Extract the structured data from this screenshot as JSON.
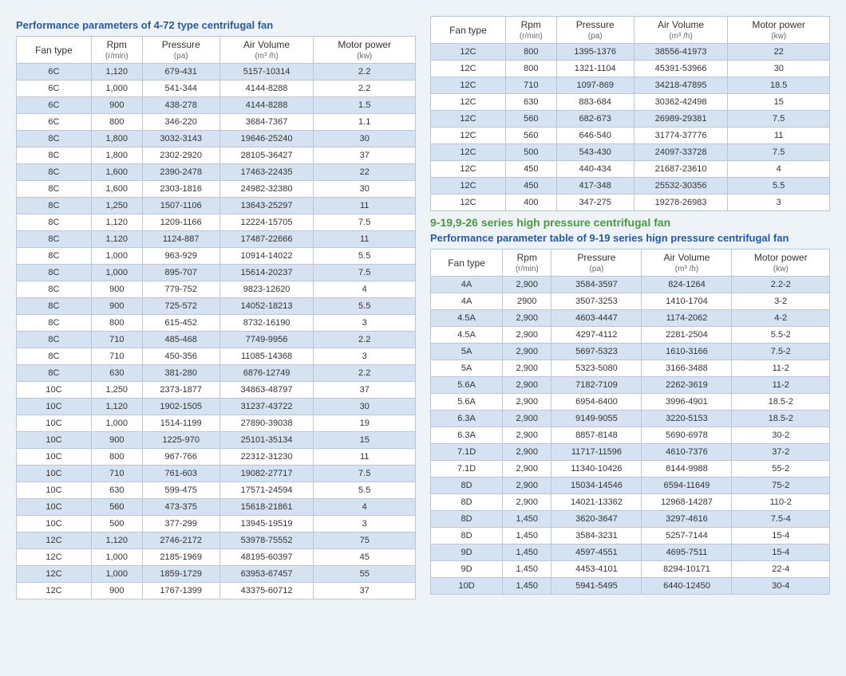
{
  "colors": {
    "title_blue": "#2659a6",
    "title_green": "#4a9a3f",
    "stripe": "#d4e2f1",
    "border": "#b8c6d6",
    "bg": "#eef3f8"
  },
  "headers": {
    "fan_type": "Fan type",
    "rpm": "Rpm",
    "rpm_unit": "(r/min)",
    "pressure": "Pressure",
    "pressure_unit": "(pa)",
    "air_volume": "Air Volume",
    "air_volume_unit": "(m³ /h)",
    "motor_power": "Motor power",
    "motor_power_unit": "(kw)"
  },
  "left": {
    "title": "Performance parameters of 4-72 type centrifugal fan",
    "rows": [
      [
        "6C",
        "1,120",
        "679-431",
        "5157-10314",
        "2.2"
      ],
      [
        "6C",
        "1,000",
        "541-344",
        "4144-8288",
        "2.2"
      ],
      [
        "6C",
        "900",
        "438-278",
        "4144-8288",
        "1.5"
      ],
      [
        "6C",
        "800",
        "346-220",
        "3684-7367",
        "1.1"
      ],
      [
        "8C",
        "1,800",
        "3032-3143",
        "19646-25240",
        "30"
      ],
      [
        "8C",
        "1,800",
        "2302-2920",
        "28105-36427",
        "37"
      ],
      [
        "8C",
        "1,600",
        "2390-2478",
        "17463-22435",
        "22"
      ],
      [
        "8C",
        "1,600",
        "2303-1816",
        "24982-32380",
        "30"
      ],
      [
        "8C",
        "1,250",
        "1507-1106",
        "13643-25297",
        "11"
      ],
      [
        "8C",
        "1,120",
        "1209-1166",
        "12224-15705",
        "7.5"
      ],
      [
        "8C",
        "1,120",
        "1124-887",
        "17487-22666",
        "11"
      ],
      [
        "8C",
        "1,000",
        "963-929",
        "10914-14022",
        "5.5"
      ],
      [
        "8C",
        "1,000",
        "895-707",
        "15614-20237",
        "7.5"
      ],
      [
        "8C",
        "900",
        "779-752",
        "9823-12620",
        "4"
      ],
      [
        "8C",
        "900",
        "725-572",
        "14052-18213",
        "5.5"
      ],
      [
        "8C",
        "800",
        "615-452",
        "8732-16190",
        "3"
      ],
      [
        "8C",
        "710",
        "485-468",
        "7749-9956",
        "2.2"
      ],
      [
        "8C",
        "710",
        "450-356",
        "11085-14368",
        "3"
      ],
      [
        "8C",
        "630",
        "381-280",
        "6876-12749",
        "2.2"
      ],
      [
        "10C",
        "1,250",
        "2373-1877",
        "34863-48797",
        "37"
      ],
      [
        "10C",
        "1,120",
        "1902-1505",
        "31237-43722",
        "30"
      ],
      [
        "10C",
        "1,000",
        "1514-1199",
        "27890-39038",
        "19"
      ],
      [
        "10C",
        "900",
        "1225-970",
        "25101-35134",
        "15"
      ],
      [
        "10C",
        "800",
        "967-766",
        "22312-31230",
        "11"
      ],
      [
        "10C",
        "710",
        "761-603",
        "19082-27717",
        "7.5"
      ],
      [
        "10C",
        "630",
        "599-475",
        "17571-24594",
        "5.5"
      ],
      [
        "10C",
        "560",
        "473-375",
        "15618-21861",
        "4"
      ],
      [
        "10C",
        "500",
        "377-299",
        "13945-19519",
        "3"
      ],
      [
        "12C",
        "1,120",
        "2746-2172",
        "53978-75552",
        "75"
      ],
      [
        "12C",
        "1,000",
        "2185-1969",
        "48195-60397",
        "45"
      ],
      [
        "12C",
        "1,000",
        "1859-1729",
        "63953-67457",
        "55"
      ],
      [
        "12C",
        "900",
        "1767-1399",
        "43375-60712",
        "37"
      ]
    ]
  },
  "right_top": {
    "rows": [
      [
        "12C",
        "800",
        "1395-1376",
        "38556-41973",
        "22"
      ],
      [
        "12C",
        "800",
        "1321-1104",
        "45391-53966",
        "30"
      ],
      [
        "12C",
        "710",
        "1097-869",
        "34218-47895",
        "18.5"
      ],
      [
        "12C",
        "630",
        "883-684",
        "30362-42498",
        "15"
      ],
      [
        "12C",
        "560",
        "682-673",
        "26989-29381",
        "7.5"
      ],
      [
        "12C",
        "560",
        "646-540",
        "31774-37776",
        "11"
      ],
      [
        "12C",
        "500",
        "543-430",
        "24097-33728",
        "7.5"
      ],
      [
        "12C",
        "450",
        "440-434",
        "21687-23610",
        "4"
      ],
      [
        "12C",
        "450",
        "417-348",
        "25532-30356",
        "5.5"
      ],
      [
        "12C",
        "400",
        "347-275",
        "19278-26983",
        "3"
      ]
    ]
  },
  "right_bottom": {
    "green_title": "9-19,9-26 series high pressure centrifugal fan",
    "title": "Performance parameter table of 9-19 series hign pressure centrifugal fan",
    "rows": [
      [
        "4A",
        "2,900",
        "3584-3597",
        "824-1264",
        "2.2-2"
      ],
      [
        "4A",
        "2900",
        "3507-3253",
        "1410-1704",
        "3-2"
      ],
      [
        "4.5A",
        "2,900",
        "4603-4447",
        "1174-2062",
        "4-2"
      ],
      [
        "4.5A",
        "2,900",
        "4297-4112",
        "2281-2504",
        "5.5-2"
      ],
      [
        "5A",
        "2,900",
        "5697-5323",
        "1610-3166",
        "7.5-2"
      ],
      [
        "5A",
        "2,900",
        "5323-5080",
        "3166-3488",
        "11-2"
      ],
      [
        "5.6A",
        "2,900",
        "7182-7109",
        "2262-3619",
        "11-2"
      ],
      [
        "5.6A",
        "2,900",
        "6954-6400",
        "3996-4901",
        "18.5-2"
      ],
      [
        "6.3A",
        "2,900",
        "9149-9055",
        "3220-5153",
        "18.5-2"
      ],
      [
        "6.3A",
        "2,900",
        "8857-8148",
        "5690-6978",
        "30-2"
      ],
      [
        "7.1D",
        "2,900",
        "11717-11596",
        "4610-7376",
        "37-2"
      ],
      [
        "7.1D",
        "2,900",
        "11340-10426",
        "8144-9988",
        "55-2"
      ],
      [
        "8D",
        "2,900",
        "15034-14546",
        "6594-11649",
        "75-2"
      ],
      [
        "8D",
        "2,900",
        "14021-13362",
        "12968-14287",
        "110-2"
      ],
      [
        "8D",
        "1,450",
        "3620-3647",
        "3297-4616",
        "7.5-4"
      ],
      [
        "8D",
        "1,450",
        "3584-3231",
        "5257-7144",
        "15-4"
      ],
      [
        "9D",
        "1,450",
        "4597-4551",
        "4695-7511",
        "15-4"
      ],
      [
        "9D",
        "1,450",
        "4453-4101",
        "8294-10171",
        "22-4"
      ],
      [
        "10D",
        "1,450",
        "5941-5495",
        "6440-12450",
        "30-4"
      ]
    ]
  }
}
